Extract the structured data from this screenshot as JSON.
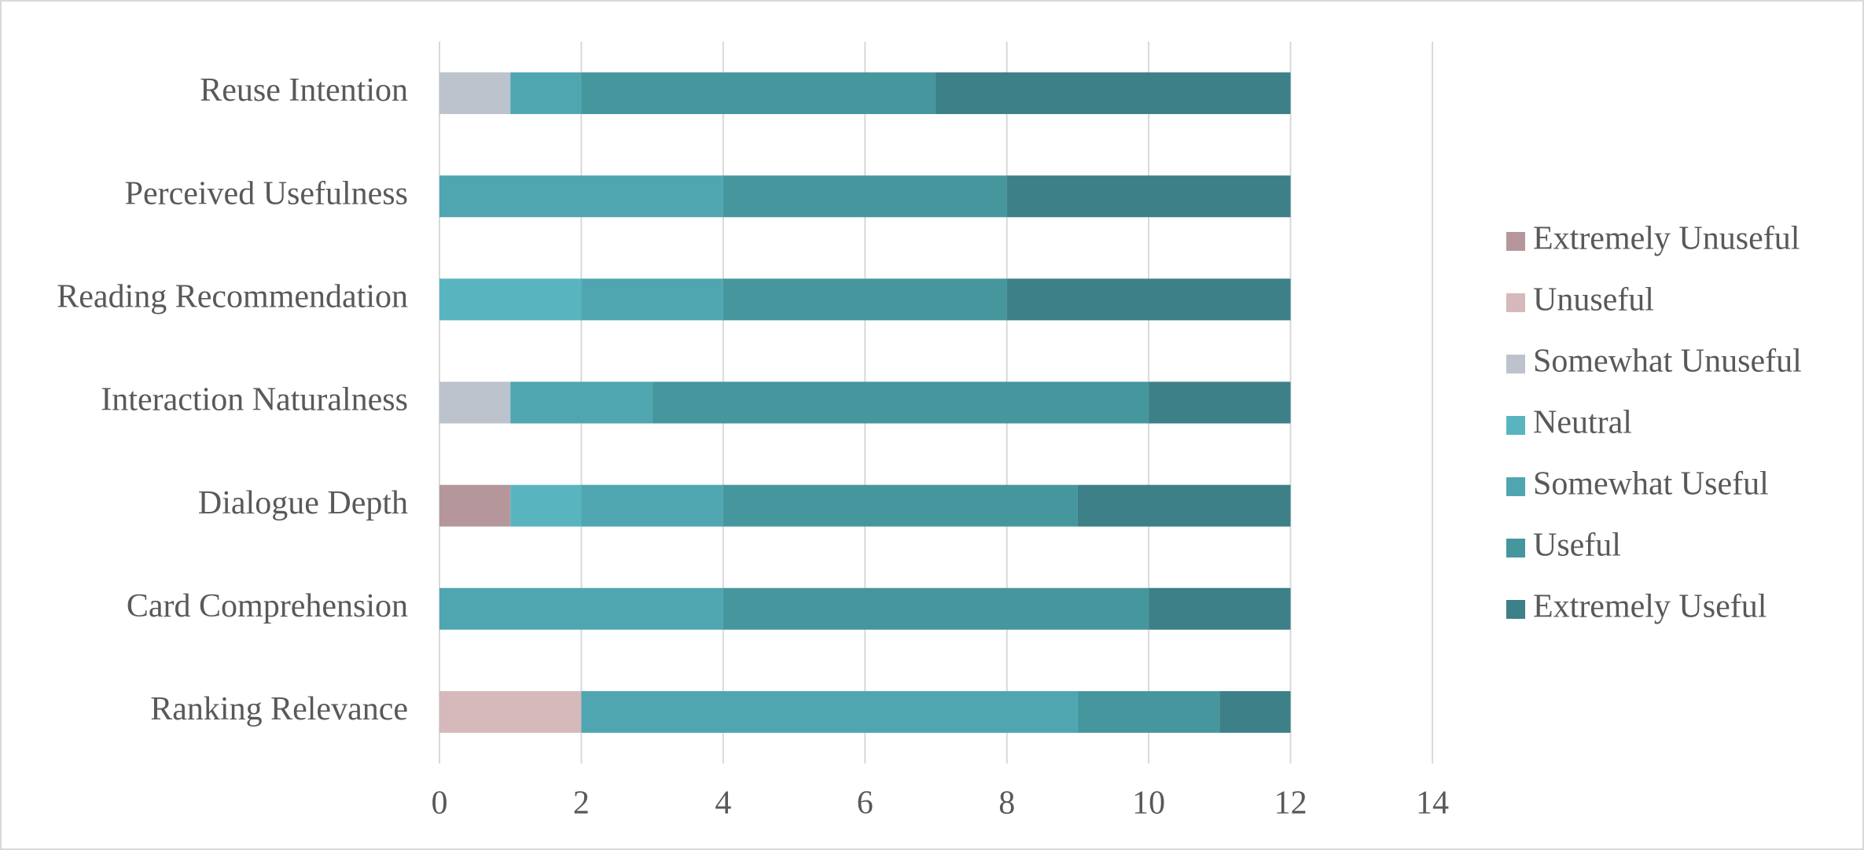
{
  "chart_data": {
    "type": "stacked-barh",
    "categories": [
      "Ranking Relevance",
      "Card Comprehension",
      "Dialogue Depth",
      "Interaction Naturalness",
      "Reading Recommendation",
      "Perceived Usefulness",
      "Reuse Intention"
    ],
    "series": [
      {
        "name": "Extremely Unuseful",
        "color": "#b5979b",
        "values": [
          0,
          0,
          1,
          0,
          0,
          0,
          0
        ]
      },
      {
        "name": "Unuseful",
        "color": "#d6b9ba",
        "values": [
          2,
          0,
          0,
          0,
          0,
          0,
          0
        ]
      },
      {
        "name": "Somewhat Unuseful",
        "color": "#bcc3cd",
        "values": [
          0,
          0,
          0,
          1,
          0,
          0,
          1
        ]
      },
      {
        "name": "Neutral",
        "color": "#58b5c0",
        "values": [
          0,
          0,
          1,
          0,
          2,
          0,
          0
        ]
      },
      {
        "name": "Somewhat Useful",
        "color": "#4fa6b1",
        "values": [
          7,
          4,
          2,
          2,
          2,
          4,
          1
        ]
      },
      {
        "name": "Useful",
        "color": "#46979d",
        "values": [
          2,
          6,
          5,
          7,
          4,
          4,
          5
        ]
      },
      {
        "name": "Extremely Useful",
        "color": "#3d8087",
        "values": [
          1,
          2,
          3,
          2,
          4,
          4,
          5
        ]
      }
    ],
    "xlim": [
      0,
      14
    ],
    "xticks": [
      0,
      2,
      4,
      6,
      8,
      10,
      12,
      14
    ],
    "grid": true,
    "legend": "right"
  }
}
